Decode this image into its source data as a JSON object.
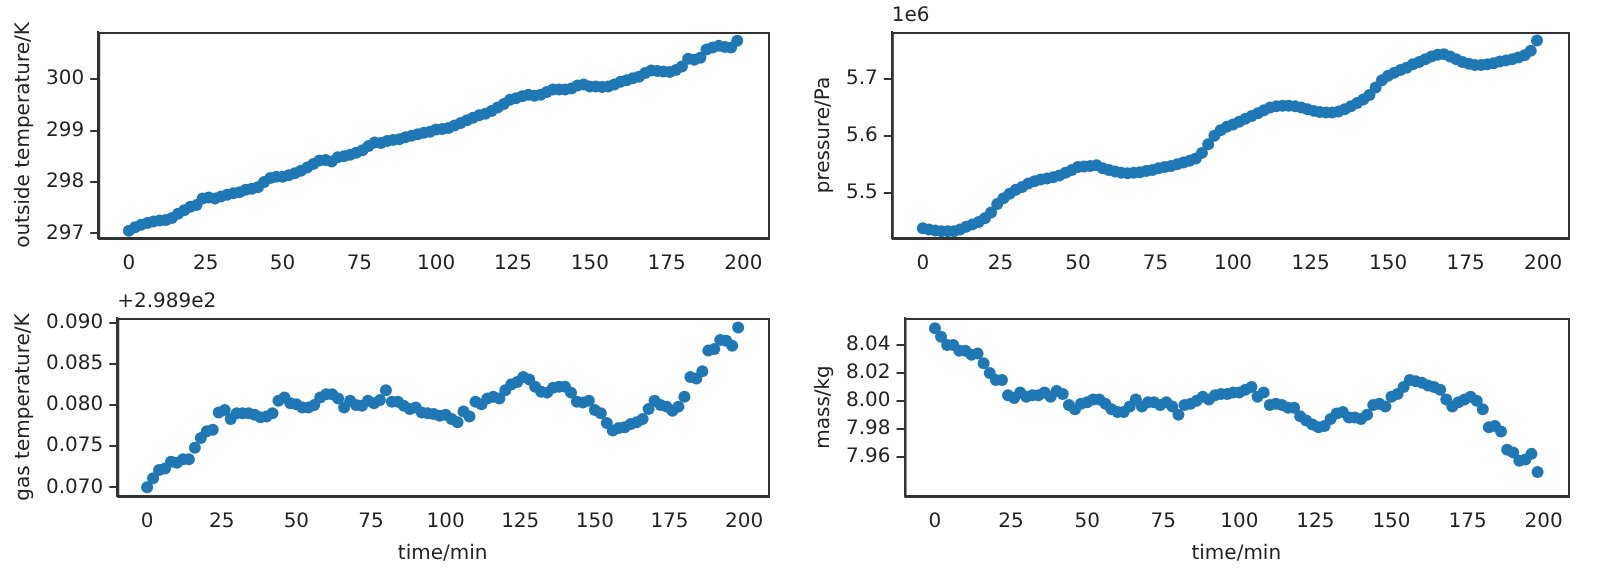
{
  "chart_data": [
    {
      "type": "scatter",
      "ylabel": "outside temperature/K",
      "marker": "circle",
      "grid": false,
      "xlim": [
        -10,
        208
      ],
      "xticks": [
        0,
        25,
        50,
        75,
        100,
        125,
        150,
        175,
        200
      ],
      "ylim": [
        296.91,
        300.92
      ],
      "yticks": [
        297,
        298,
        299,
        300
      ],
      "series": [
        {
          "color": "#1f77b4",
          "x": [
            0,
            2,
            4,
            6,
            8,
            10,
            12,
            14,
            16,
            18,
            20,
            22,
            24,
            26,
            28,
            30,
            32,
            34,
            36,
            38,
            40,
            42,
            44,
            46,
            48,
            50,
            52,
            54,
            56,
            58,
            60,
            62,
            64,
            66,
            68,
            70,
            72,
            74,
            76,
            78,
            80,
            82,
            84,
            86,
            88,
            90,
            92,
            94,
            96,
            98,
            100,
            102,
            104,
            106,
            108,
            110,
            112,
            114,
            116,
            118,
            120,
            122,
            124,
            126,
            128,
            130,
            132,
            134,
            136,
            138,
            140,
            142,
            144,
            146,
            148,
            150,
            152,
            154,
            156,
            158,
            160,
            162,
            164,
            166,
            168,
            170,
            172,
            174,
            176,
            178,
            180,
            182,
            184,
            186,
            188,
            190,
            192,
            194,
            196,
            198
          ],
          "values": [
            297.05,
            297.12,
            297.17,
            297.2,
            297.23,
            297.25,
            297.26,
            297.3,
            297.38,
            297.45,
            297.52,
            297.55,
            297.68,
            297.7,
            297.68,
            297.72,
            297.75,
            297.78,
            297.8,
            297.85,
            297.87,
            297.9,
            298.0,
            298.08,
            298.1,
            298.1,
            298.13,
            298.17,
            298.22,
            298.28,
            298.35,
            298.42,
            298.43,
            298.4,
            298.48,
            298.5,
            298.53,
            298.57,
            298.62,
            298.7,
            298.77,
            298.76,
            298.8,
            298.82,
            298.83,
            298.87,
            298.9,
            298.93,
            298.96,
            298.98,
            299.02,
            299.03,
            299.05,
            299.1,
            299.15,
            299.2,
            299.25,
            299.3,
            299.33,
            299.38,
            299.45,
            299.52,
            299.6,
            299.63,
            299.67,
            299.7,
            299.68,
            299.7,
            299.75,
            299.8,
            299.8,
            299.8,
            299.82,
            299.88,
            299.9,
            299.86,
            299.86,
            299.85,
            299.86,
            299.9,
            299.95,
            299.98,
            300.02,
            300.05,
            300.12,
            300.17,
            300.16,
            300.15,
            300.14,
            300.18,
            300.25,
            300.4,
            300.38,
            300.42,
            300.58,
            300.62,
            300.65,
            300.63,
            300.62,
            300.75
          ]
        }
      ]
    },
    {
      "type": "scatter",
      "ylabel": "pressure/Pa",
      "marker": "circle",
      "grid": false,
      "annotations": [
        "1e6"
      ],
      "xlim": [
        -10,
        208
      ],
      "xticks": [
        0,
        25,
        50,
        75,
        100,
        125,
        150,
        175,
        200
      ],
      "ylim": [
        5.42,
        5.783
      ],
      "yticks": [
        5.5,
        5.6,
        5.7
      ],
      "series": [
        {
          "color": "#1f77b4",
          "x": [
            0,
            2,
            4,
            6,
            8,
            10,
            12,
            14,
            16,
            18,
            20,
            22,
            24,
            26,
            28,
            30,
            32,
            34,
            36,
            38,
            40,
            42,
            44,
            46,
            48,
            50,
            52,
            54,
            56,
            58,
            60,
            62,
            64,
            66,
            68,
            70,
            72,
            74,
            76,
            78,
            80,
            82,
            84,
            86,
            88,
            90,
            92,
            94,
            96,
            98,
            100,
            102,
            104,
            106,
            108,
            110,
            112,
            114,
            116,
            118,
            120,
            122,
            124,
            126,
            128,
            130,
            132,
            134,
            136,
            138,
            140,
            142,
            144,
            146,
            148,
            150,
            152,
            154,
            156,
            158,
            160,
            162,
            164,
            166,
            168,
            170,
            172,
            174,
            176,
            178,
            180,
            182,
            184,
            186,
            188,
            190,
            192,
            194,
            196,
            198
          ],
          "values": [
            5.437,
            5.435,
            5.433,
            5.432,
            5.432,
            5.432,
            5.435,
            5.44,
            5.444,
            5.448,
            5.455,
            5.465,
            5.48,
            5.49,
            5.498,
            5.505,
            5.51,
            5.516,
            5.52,
            5.523,
            5.525,
            5.527,
            5.53,
            5.535,
            5.54,
            5.545,
            5.546,
            5.547,
            5.548,
            5.543,
            5.54,
            5.537,
            5.535,
            5.534,
            5.535,
            5.536,
            5.538,
            5.54,
            5.543,
            5.545,
            5.547,
            5.55,
            5.553,
            5.556,
            5.56,
            5.57,
            5.585,
            5.6,
            5.61,
            5.616,
            5.62,
            5.625,
            5.63,
            5.635,
            5.64,
            5.645,
            5.65,
            5.652,
            5.653,
            5.653,
            5.652,
            5.65,
            5.647,
            5.644,
            5.642,
            5.641,
            5.641,
            5.643,
            5.647,
            5.652,
            5.658,
            5.664,
            5.672,
            5.685,
            5.698,
            5.706,
            5.711,
            5.716,
            5.72,
            5.726,
            5.73,
            5.735,
            5.74,
            5.743,
            5.744,
            5.74,
            5.735,
            5.73,
            5.727,
            5.725,
            5.725,
            5.726,
            5.728,
            5.731,
            5.733,
            5.735,
            5.738,
            5.742,
            5.75,
            5.768
          ]
        }
      ]
    },
    {
      "type": "scatter",
      "xlabel": "time/min",
      "ylabel": "gas temperature/K",
      "marker": "circle",
      "grid": false,
      "annotations": [
        "+2.989e2"
      ],
      "xlim": [
        -10,
        208
      ],
      "xticks": [
        0,
        25,
        50,
        75,
        100,
        125,
        150,
        175,
        200
      ],
      "ylim": [
        0.06895,
        0.09056
      ],
      "yticks": [
        {
          "value": 0.07,
          "label": "0.070"
        },
        {
          "value": 0.075,
          "label": "0.075"
        },
        {
          "value": 0.08,
          "label": "0.080"
        },
        {
          "value": 0.085,
          "label": "0.085"
        },
        {
          "value": 0.09,
          "label": "0.090"
        }
      ],
      "series": [
        {
          "color": "#1f77b4",
          "x": [
            0,
            2,
            4,
            6,
            8,
            10,
            12,
            14,
            16,
            18,
            20,
            22,
            24,
            26,
            28,
            30,
            32,
            34,
            36,
            38,
            40,
            42,
            44,
            46,
            48,
            50,
            52,
            54,
            56,
            58,
            60,
            62,
            64,
            66,
            68,
            70,
            72,
            74,
            76,
            78,
            80,
            82,
            84,
            86,
            88,
            90,
            92,
            94,
            96,
            98,
            100,
            102,
            104,
            106,
            108,
            110,
            112,
            114,
            116,
            118,
            120,
            122,
            124,
            126,
            128,
            130,
            132,
            134,
            136,
            138,
            140,
            142,
            144,
            146,
            148,
            150,
            152,
            154,
            156,
            158,
            160,
            162,
            164,
            166,
            168,
            170,
            172,
            174,
            176,
            178,
            180,
            182,
            184,
            186,
            188,
            190,
            192,
            194,
            196,
            198
          ],
          "values": [
            0.07,
            0.0711,
            0.0721,
            0.0723,
            0.0731,
            0.073,
            0.0734,
            0.0734,
            0.0748,
            0.076,
            0.0768,
            0.077,
            0.0791,
            0.0794,
            0.0783,
            0.079,
            0.079,
            0.079,
            0.0788,
            0.0785,
            0.0786,
            0.079,
            0.0805,
            0.0809,
            0.0802,
            0.0801,
            0.0797,
            0.0797,
            0.08,
            0.0809,
            0.0813,
            0.0813,
            0.0808,
            0.0797,
            0.0805,
            0.08,
            0.0799,
            0.0805,
            0.0802,
            0.0806,
            0.0818,
            0.0804,
            0.0804,
            0.0799,
            0.0795,
            0.0797,
            0.0791,
            0.079,
            0.0789,
            0.0787,
            0.0788,
            0.0783,
            0.0779,
            0.0792,
            0.0786,
            0.0804,
            0.0801,
            0.0808,
            0.081,
            0.0808,
            0.0818,
            0.0825,
            0.0828,
            0.0834,
            0.0831,
            0.0822,
            0.0816,
            0.0815,
            0.0821,
            0.0822,
            0.0822,
            0.0815,
            0.0804,
            0.0803,
            0.0805,
            0.0794,
            0.079,
            0.0778,
            0.0769,
            0.0772,
            0.0773,
            0.0777,
            0.0779,
            0.0783,
            0.0795,
            0.0805,
            0.08,
            0.0798,
            0.0793,
            0.0798,
            0.081,
            0.0834,
            0.0832,
            0.0841,
            0.0866,
            0.0868,
            0.0879,
            0.0878,
            0.0872,
            0.0894
          ]
        }
      ]
    },
    {
      "type": "scatter",
      "xlabel": "time/min",
      "ylabel": "mass/kg",
      "marker": "circle",
      "grid": false,
      "xlim": [
        -10,
        208
      ],
      "xticks": [
        0,
        25,
        50,
        75,
        100,
        125,
        150,
        175,
        200
      ],
      "ylim": [
        7.9318,
        8.0594
      ],
      "yticks": [
        {
          "value": 7.96,
          "label": "7.96"
        },
        {
          "value": 7.98,
          "label": "7.98"
        },
        {
          "value": 8.0,
          "label": "8.00"
        },
        {
          "value": 8.02,
          "label": "8.02"
        },
        {
          "value": 8.04,
          "label": "8.04"
        }
      ],
      "series": [
        {
          "color": "#1f77b4",
          "x": [
            0,
            2,
            4,
            6,
            8,
            10,
            12,
            14,
            16,
            18,
            20,
            22,
            24,
            26,
            28,
            30,
            32,
            34,
            36,
            38,
            40,
            42,
            44,
            46,
            48,
            50,
            52,
            54,
            56,
            58,
            60,
            62,
            64,
            66,
            68,
            70,
            72,
            74,
            76,
            78,
            80,
            82,
            84,
            86,
            88,
            90,
            92,
            94,
            96,
            98,
            100,
            102,
            104,
            106,
            108,
            110,
            112,
            114,
            116,
            118,
            120,
            122,
            124,
            126,
            128,
            130,
            132,
            134,
            136,
            138,
            140,
            142,
            144,
            146,
            148,
            150,
            152,
            154,
            156,
            158,
            160,
            162,
            164,
            166,
            168,
            170,
            172,
            174,
            176,
            178,
            180,
            182,
            184,
            186,
            188,
            190,
            192,
            194,
            196,
            198
          ],
          "values": [
            8.052,
            8.046,
            8.04,
            8.04,
            8.036,
            8.036,
            8.033,
            8.034,
            8.027,
            8.02,
            8.015,
            8.015,
            8.004,
            8.002,
            8.006,
            8.003,
            8.004,
            8.004,
            8.006,
            8.003,
            8.007,
            8.005,
            7.997,
            7.994,
            7.998,
            7.999,
            8.001,
            8.001,
            7.998,
            7.994,
            7.992,
            7.992,
            7.996,
            8.001,
            7.996,
            7.999,
            7.999,
            7.997,
            7.999,
            7.996,
            7.99,
            7.997,
            7.998,
            8.0,
            8.003,
            8.001,
            8.004,
            8.005,
            8.005,
            8.006,
            8.006,
            8.008,
            8.01,
            8.003,
            8.006,
            7.997,
            7.998,
            7.997,
            7.995,
            7.995,
            7.989,
            7.986,
            7.983,
            7.981,
            7.982,
            7.987,
            7.991,
            7.992,
            7.988,
            7.988,
            7.987,
            7.99,
            7.997,
            7.998,
            7.996,
            8.003,
            8.005,
            8.01,
            8.015,
            8.014,
            8.013,
            8.011,
            8.01,
            8.008,
            8.001,
            7.996,
            7.999,
            8.001,
            8.003,
            8.0,
            7.994,
            7.981,
            7.982,
            7.978,
            7.965,
            7.963,
            7.957,
            7.958,
            7.962,
            7.949
          ]
        }
      ]
    }
  ]
}
